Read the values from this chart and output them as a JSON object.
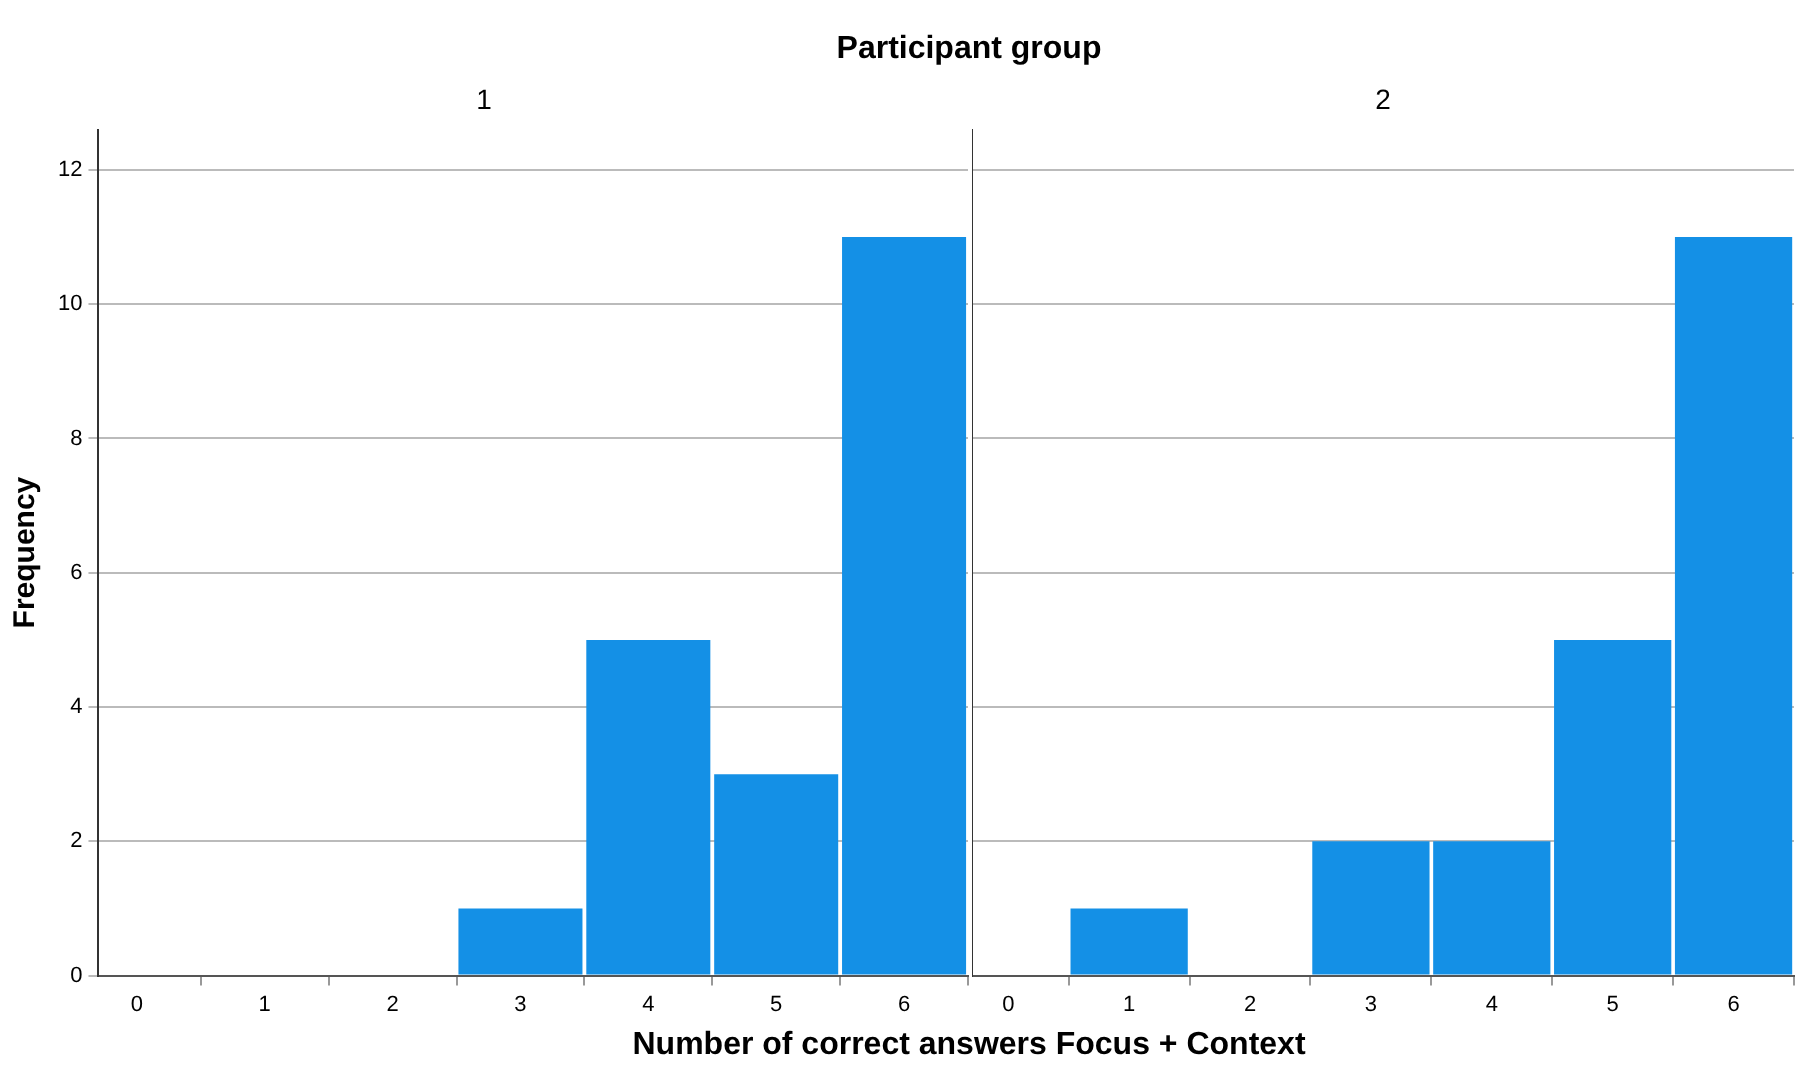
{
  "chart_data": [
    {
      "type": "histogram",
      "title": "1",
      "annotations": [
        "Participant group"
      ],
      "xlabel": "Number of correct answers Focus + Context",
      "ylabel": "Frequency",
      "bins": [
        -0.5,
        0.5,
        1.5,
        2.5,
        3.5,
        4.5,
        5.5,
        6.5
      ],
      "values": [
        0,
        0,
        0,
        1,
        5,
        3,
        11
      ],
      "color": "#1490e6",
      "xlim": [
        -0.3,
        6.5
      ],
      "xticks": [
        0,
        1,
        2,
        3,
        4,
        5,
        6
      ],
      "ylim": [
        0,
        12.6
      ],
      "yticks": [
        0,
        2,
        4,
        6,
        8,
        10,
        12
      ],
      "grid": "y"
    },
    {
      "type": "histogram",
      "title": "2",
      "bins": [
        -0.5,
        0.5,
        1.5,
        2.5,
        3.5,
        4.5,
        5.5,
        6.5
      ],
      "values": [
        0,
        1,
        0,
        2,
        2,
        5,
        11
      ],
      "color": "#1490e6",
      "xlim": [
        -0.3,
        6.5
      ],
      "xticks": [
        0,
        1,
        2,
        3,
        4,
        5,
        6
      ],
      "ylim": [
        0,
        12.6
      ],
      "yticks": [
        0,
        2,
        4,
        6,
        8,
        10,
        12
      ],
      "grid": "y",
      "tick_labels": "x"
    }
  ]
}
